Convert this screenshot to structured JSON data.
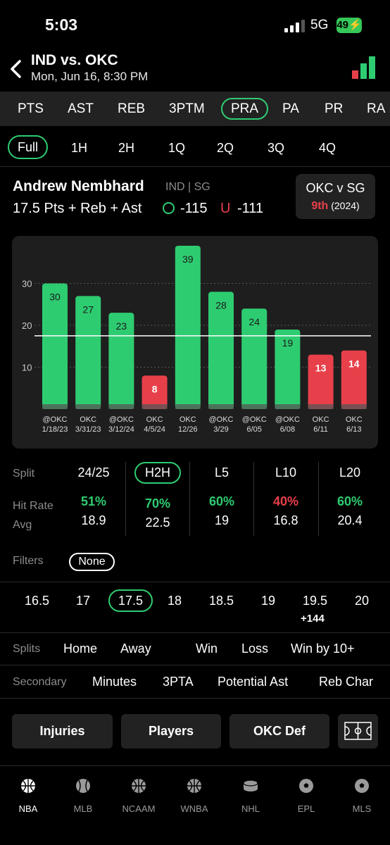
{
  "status": {
    "time": "5:03",
    "network": "5G",
    "battery": "49"
  },
  "header": {
    "matchup": "IND vs. OKC",
    "datetime": "Mon, Jun 16, 8:30 PM"
  },
  "markets": [
    "PTS",
    "AST",
    "REB",
    "3PTM",
    "PRA",
    "PA",
    "PR",
    "RA"
  ],
  "periods": [
    "Full",
    "1H",
    "2H",
    "1Q",
    "2Q",
    "3Q",
    "4Q"
  ],
  "player": {
    "name": "Andrew Nembhard",
    "team_pos": "IND | SG",
    "line_text": "17.5 Pts + Reb + Ast",
    "over_odds": "-115",
    "under_symbol": "U",
    "under_odds": "-111"
  },
  "opponent": {
    "title": "OKC v SG",
    "rank": "9th",
    "season": "(2024)"
  },
  "chart_data": {
    "type": "bar",
    "categories": [
      "@OKC 1/18/23",
      "OKC 3/31/23",
      "@OKC 3/12/24",
      "OKC 4/5/24",
      "OKC 12/26",
      "@OKC 3/29",
      "@OKC 6/05",
      "@OKC 6/08",
      "OKC 6/11",
      "OKC 6/13"
    ],
    "x_top": [
      "@OKC",
      "OKC",
      "@OKC",
      "OKC",
      "OKC",
      "@OKC",
      "@OKC",
      "@OKC",
      "OKC",
      "OKC"
    ],
    "x_bottom": [
      "1/18/23",
      "3/31/23",
      "3/12/24",
      "4/5/24",
      "12/26",
      "3/29",
      "6/05",
      "6/08",
      "6/11",
      "6/13"
    ],
    "values": [
      30,
      27,
      23,
      8,
      39,
      28,
      24,
      19,
      13,
      14
    ],
    "line": 17.5,
    "yticks": [
      "10",
      "20",
      "30"
    ],
    "ylim": [
      0,
      40
    ],
    "colors": {
      "over": "#2ecc71",
      "under": "#e8404a",
      "line": "#ffffff"
    }
  },
  "splits": {
    "label_split": "Split",
    "label_hit": "Hit Rate",
    "label_avg": "Avg",
    "columns": [
      {
        "name": "24/25",
        "hit": "51%",
        "avg": "18.9"
      },
      {
        "name": "H2H",
        "hit": "70%",
        "avg": "22.5"
      },
      {
        "name": "L5",
        "hit": "60%",
        "avg": "19"
      },
      {
        "name": "L10",
        "hit": "40%",
        "avg": "16.8"
      },
      {
        "name": "L20",
        "hit": "60%",
        "avg": "20.4"
      }
    ]
  },
  "filters": {
    "label": "Filters",
    "value": "None"
  },
  "lines": {
    "values": [
      "16.5",
      "17",
      "17.5",
      "18",
      "18.5",
      "19",
      "19.5",
      "20"
    ],
    "alt_odds": "+144"
  },
  "split_filters": {
    "label": "Splits",
    "items": [
      "Home",
      "Away",
      "Win",
      "Loss",
      "Win by 10+"
    ]
  },
  "secondary": {
    "label": "Secondary",
    "items": [
      "Minutes",
      "3PTA",
      "Potential Ast",
      "Reb Char"
    ]
  },
  "buttons": [
    "Injuries",
    "Players",
    "OKC Def"
  ],
  "nav": [
    "NBA",
    "MLB",
    "NCAAM",
    "WNBA",
    "NHL",
    "EPL",
    "MLS"
  ]
}
